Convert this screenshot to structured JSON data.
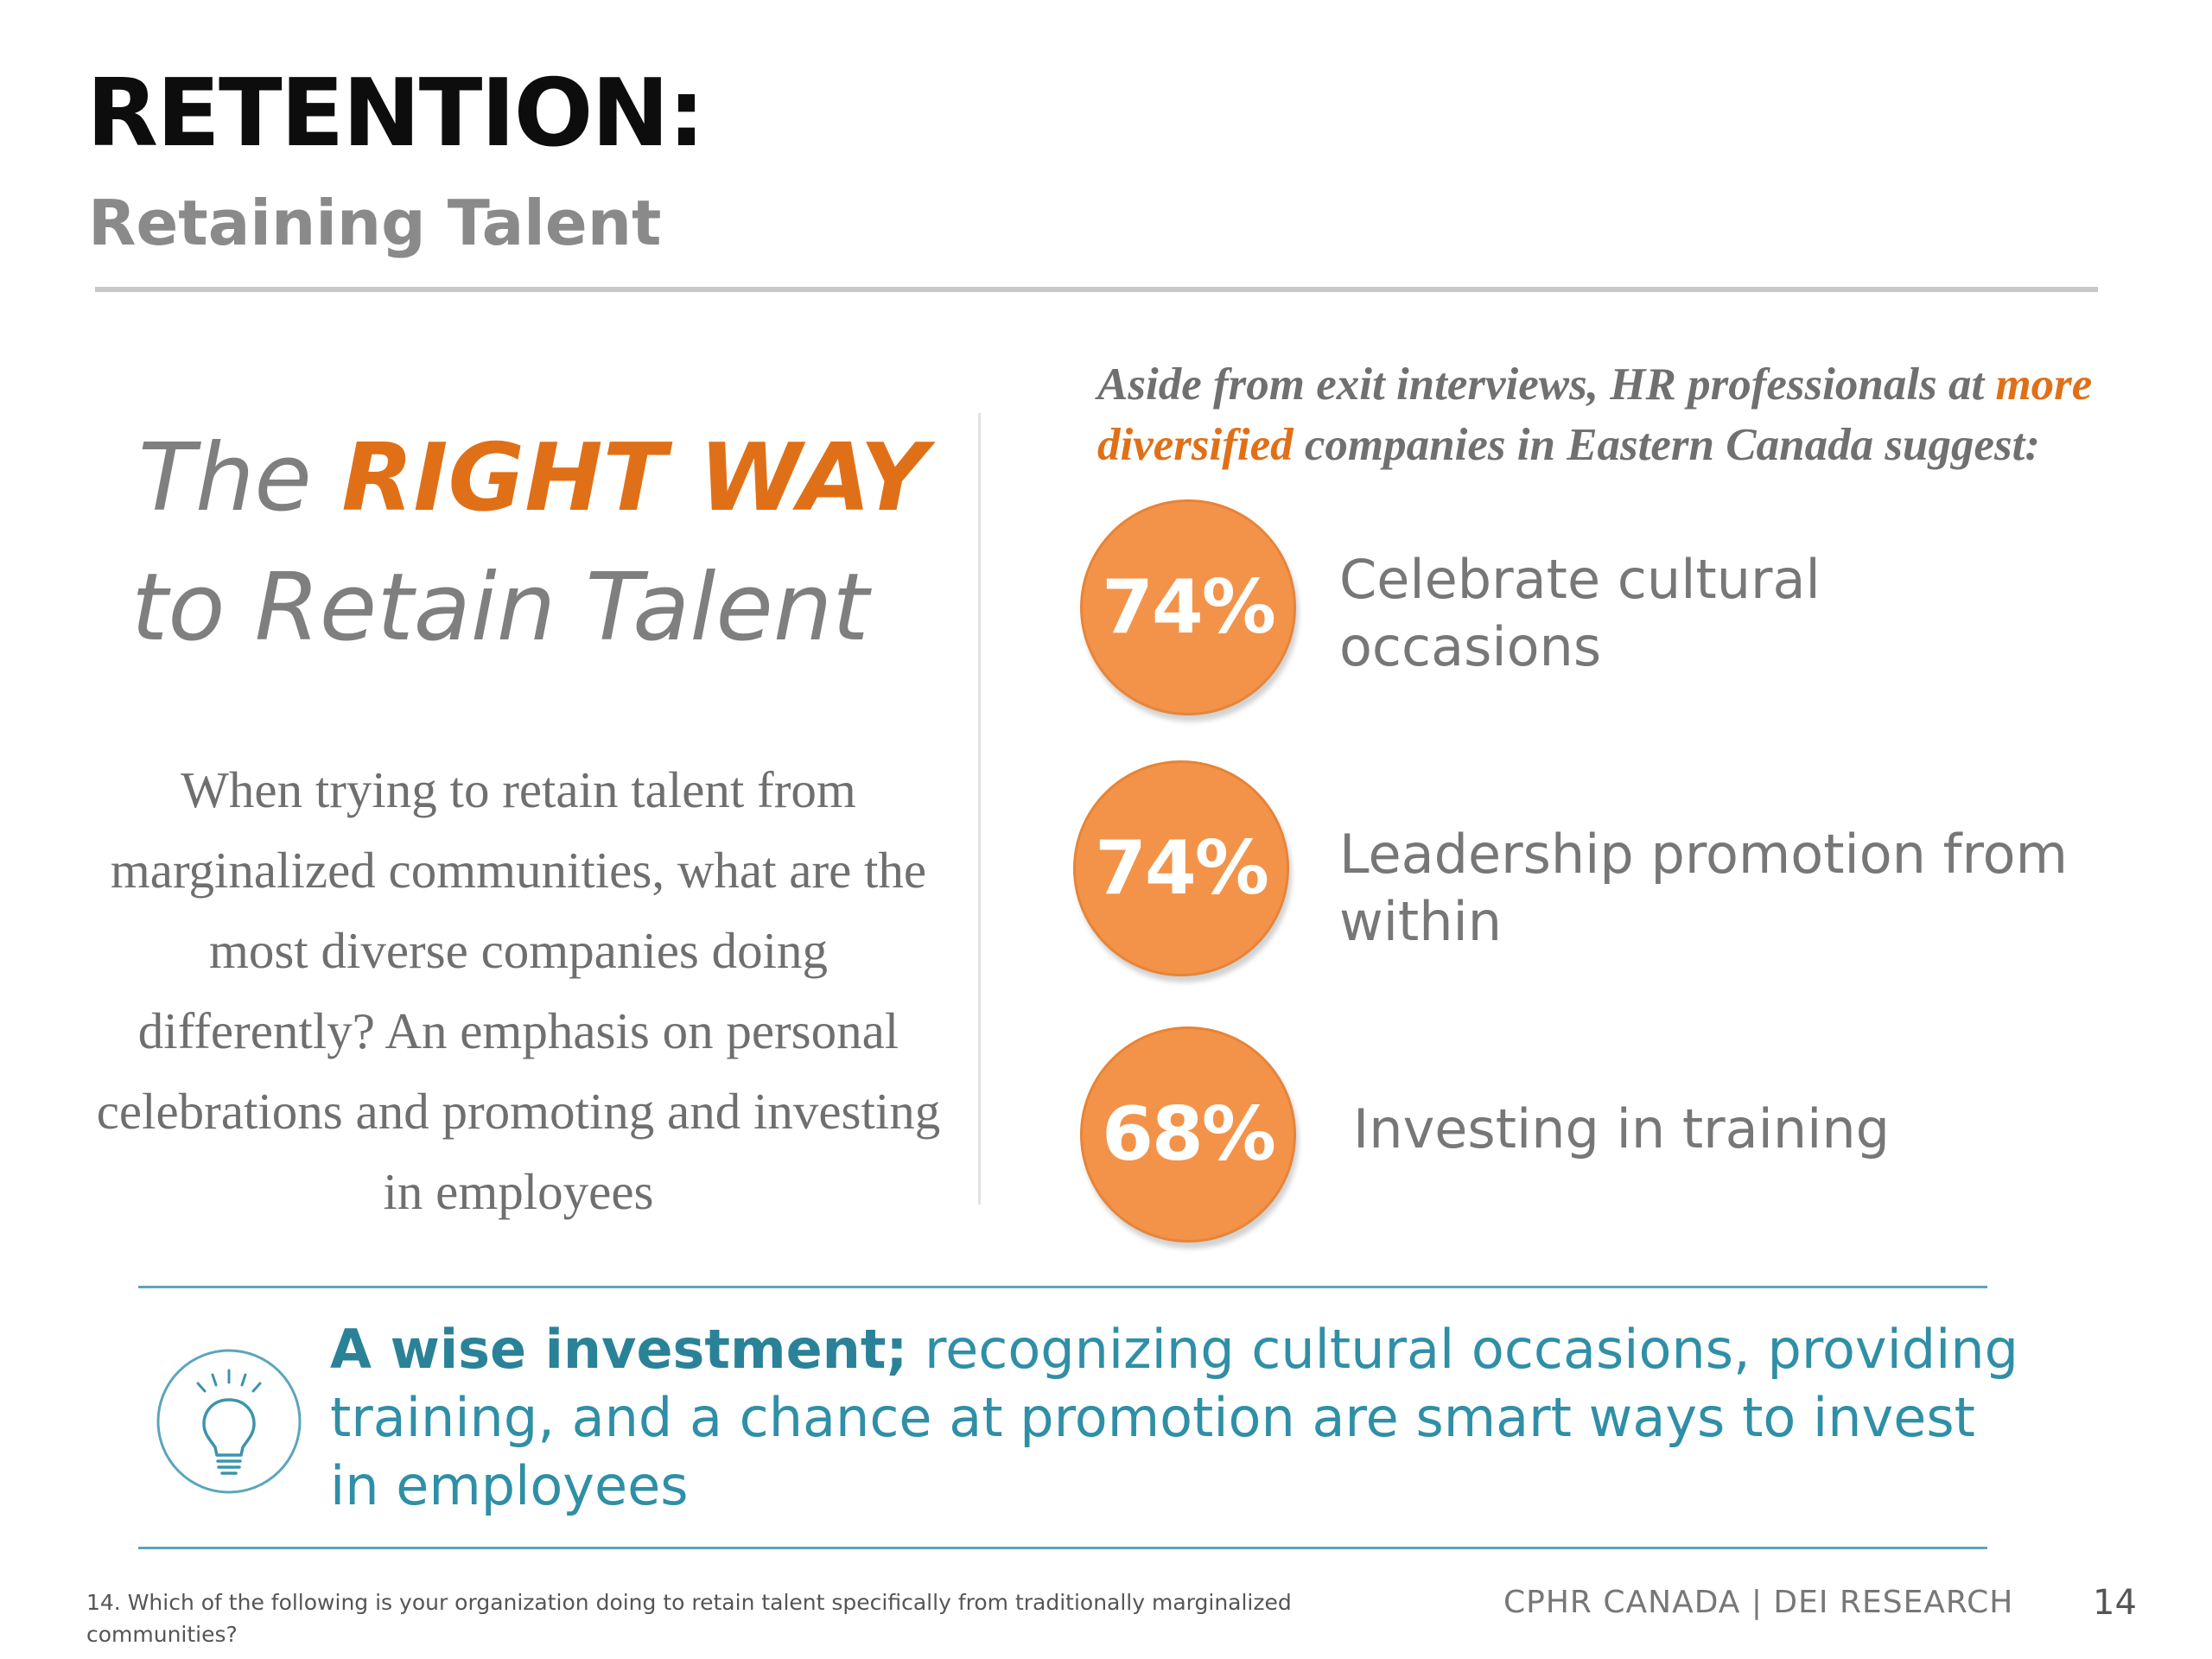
{
  "header": {
    "title": "RETENTION:",
    "subtitle": "Retaining Talent"
  },
  "left_panel": {
    "heading": {
      "part1": "The ",
      "accent": "RIGHT WAY",
      "line2": "to Retain Talent"
    },
    "body": "When trying to retain talent from marginalized communities, what are the most diverse companies doing differently? An emphasis on personal celebrations and promoting and investing in employees"
  },
  "right_panel": {
    "lead": {
      "part1": "Aside from exit interviews, HR professionals at ",
      "accent1": "more",
      "accent2": "diversified",
      "part2": " companies in Eastern Canada suggest:"
    },
    "stats": [
      {
        "value": "74%",
        "label_line1": "Celebrate cultural",
        "label_line2": "occasions"
      },
      {
        "value": "74%",
        "label_line1": "Leadership promotion from",
        "label_line2": "within"
      },
      {
        "value": "68%",
        "label_line1": "Investing in training",
        "label_line2": ""
      }
    ]
  },
  "takeaway": {
    "icon": "lightbulb-icon",
    "bold": "A wise investment;",
    "text": " recognizing cultural occasions, providing training, and a chance at promotion are smart ways to invest in employees"
  },
  "footer": {
    "footnote": "14. Which of the following is your organization doing to retain talent specifically from traditionally marginalized communities?",
    "brand": "CPHR CANADA  |  DEI RESEARCH",
    "page_number": "14"
  },
  "colors": {
    "accent_orange": "#e07018",
    "circle_orange": "#f3934a",
    "teal": "#2f8fa6",
    "teal_rule": "#5aa6bc",
    "gray_text": "#7f7f7f"
  }
}
